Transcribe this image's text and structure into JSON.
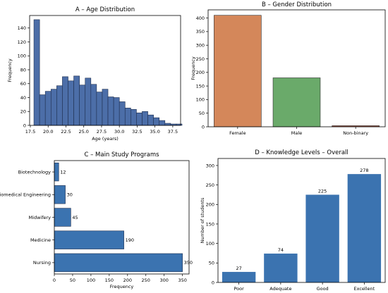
{
  "chart_data": [
    {
      "id": "A",
      "type": "bar",
      "subtype": "histogram",
      "title": "A – Age Distribution",
      "xlabel": "Age (years)",
      "ylabel": "Frequency",
      "xlim": [
        17.4,
        38.6
      ],
      "ylim": [
        0,
        158
      ],
      "xticks": [
        17.5,
        20.0,
        22.5,
        25.0,
        27.5,
        30.0,
        32.5,
        35.0,
        37.5
      ],
      "xtick_labels": [
        "17.5",
        "20.0",
        "22.5",
        "25.0",
        "27.5",
        "30.0",
        "32.5",
        "35.0",
        "37.5"
      ],
      "yticks": [
        0,
        20,
        40,
        60,
        80,
        100,
        120,
        140
      ],
      "bin_start": 18,
      "bin_width": 0.8,
      "values": [
        152,
        44,
        49,
        52,
        57,
        70,
        64,
        71,
        58,
        68,
        59,
        48,
        52,
        41,
        40,
        34,
        25,
        23,
        18,
        20,
        15,
        11,
        7,
        3,
        2,
        2
      ],
      "color": "#4c6ea8"
    },
    {
      "id": "B",
      "type": "bar",
      "title": "B – Gender Distribution",
      "xlabel": "",
      "ylabel": "Frequency",
      "ylim": [
        0,
        430
      ],
      "yticks": [
        0,
        50,
        100,
        150,
        200,
        250,
        300,
        350,
        400
      ],
      "categories": [
        "Female",
        "Male",
        "Non-binary"
      ],
      "values": [
        410,
        180,
        4
      ],
      "colors": [
        "#d4875a",
        "#6aaa6a",
        "#a65b48"
      ]
    },
    {
      "id": "C",
      "type": "bar",
      "orientation": "horizontal",
      "title": "C – Main Study Programs",
      "xlabel": "Frequency",
      "ylabel": "",
      "xlim": [
        0,
        368
      ],
      "xticks": [
        0,
        50,
        100,
        150,
        200,
        250,
        300,
        350
      ],
      "categories": [
        "Nursing",
        "Medicine",
        "Midwifery",
        "Biomedical Engineering",
        "Biotechnology"
      ],
      "values": [
        350,
        190,
        45,
        30,
        12
      ],
      "data_labels": [
        "350",
        "190",
        "45",
        "30",
        "12"
      ],
      "color": "#3b73b0"
    },
    {
      "id": "D",
      "type": "bar",
      "title": "D – Knowledge Levels – Overall",
      "xlabel": "",
      "ylabel": "Number of students",
      "ylim": [
        0,
        318
      ],
      "yticks": [
        0,
        50,
        100,
        150,
        200,
        250,
        300
      ],
      "categories": [
        "Poor",
        "Adequate",
        "Good",
        "Excellent"
      ],
      "values": [
        27,
        74,
        225,
        278
      ],
      "data_labels": [
        "27",
        "74",
        "225",
        "278"
      ],
      "color": "#3b73b0"
    }
  ]
}
